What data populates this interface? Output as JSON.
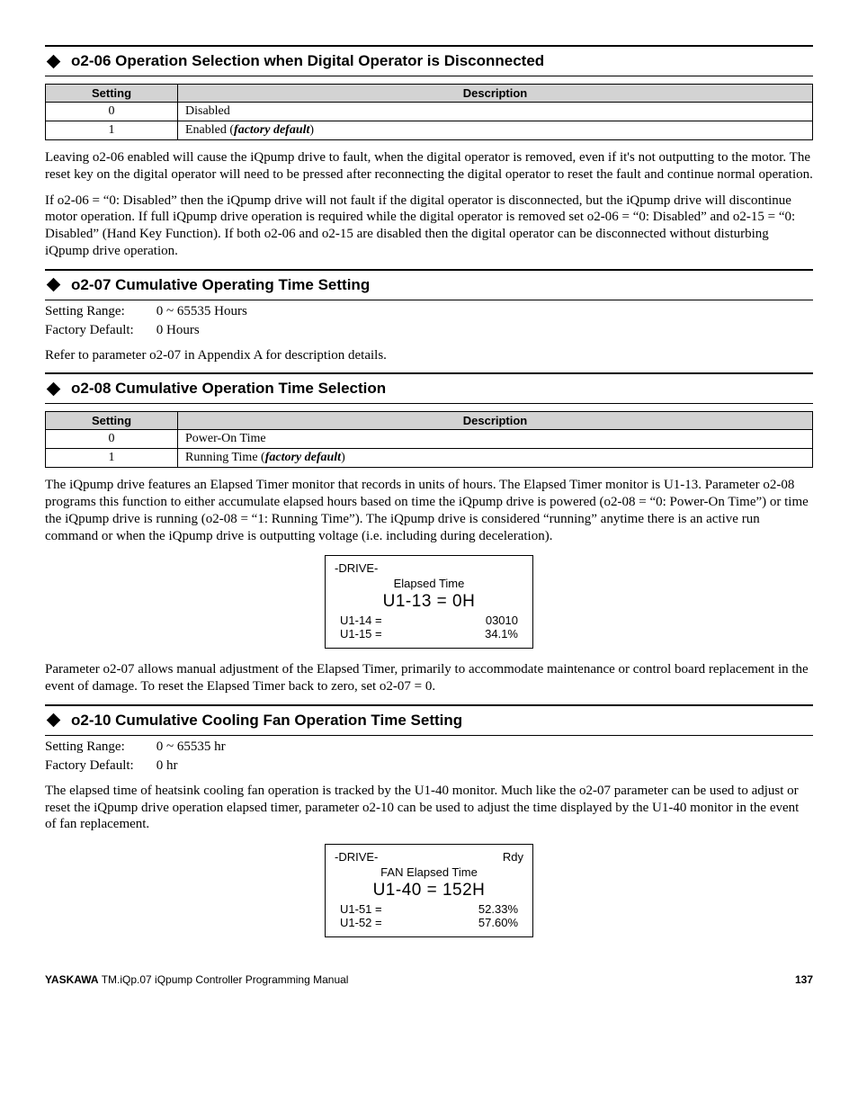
{
  "sections": {
    "s1": {
      "title": "o2-06 Operation Selection when Digital Operator is Disconnected",
      "table": {
        "headers": [
          "Setting",
          "Description"
        ],
        "rows": [
          [
            "0",
            "Disabled"
          ],
          [
            "1",
            "Enabled (",
            "factory default",
            ")"
          ]
        ]
      },
      "para1": "Leaving o2-06 enabled will cause the iQpump drive to fault, when the digital operator is removed, even if it's not outputting to the motor. The reset key on the digital operator will need to be pressed after reconnecting the digital operator to reset the fault and continue normal operation.",
      "para2": "If o2-06 = “0: Disabled” then the iQpump drive will not fault if the digital operator is disconnected, but the iQpump drive will discontinue motor operation. If full iQpump drive operation is required while the digital operator is removed set o2-06 = “0: Disabled” and o2-15 = “0: Disabled” (Hand Key Function). If both o2-06 and o2-15 are disabled then the digital operator can be disconnected without disturbing iQpump drive operation."
    },
    "s2": {
      "title": "o2-07 Cumulative Operating Time Setting",
      "setting_range_label": "Setting Range:",
      "setting_range_value": "0 ~ 65535 Hours",
      "factory_default_label": "Factory Default:",
      "factory_default_value": "0 Hours",
      "para1": "Refer to parameter o2-07 in Appendix A for description details."
    },
    "s3": {
      "title": "o2-08 Cumulative Operation Time Selection",
      "table": {
        "headers": [
          "Setting",
          "Description"
        ],
        "rows": [
          [
            "0",
            "Power-On Time"
          ],
          [
            "1",
            "Running Time (",
            "factory default",
            ")"
          ]
        ]
      },
      "para1": "The iQpump drive features an Elapsed Timer monitor that records in units of hours. The Elapsed Timer monitor is U1-13. Parameter o2-08 programs this function to either accumulate elapsed hours based on time the iQpump drive is powered (o2-08 = “0: Power-On Time”) or time the iQpump drive is running (o2-08 = “1: Running Time”). The iQpump drive is considered “running” anytime there is an active run command or when the iQpump drive is outputting voltage (i.e. including during deceleration).",
      "lcd": {
        "top_left": "-DRIVE-",
        "top_right": "",
        "line2": "Elapsed Time",
        "big": "U1-13 = 0H",
        "r1_left": "U1-14 =",
        "r1_right": "03010",
        "r2_left": "U1-15 =",
        "r2_right": "34.1%"
      },
      "para2": "Parameter o2-07 allows manual adjustment of the Elapsed Timer, primarily to accommodate maintenance or control board replacement in the event of damage. To reset the Elapsed Timer back to zero, set o2-07 = 0."
    },
    "s4": {
      "title": "o2-10 Cumulative Cooling Fan Operation Time Setting",
      "setting_range_label": "Setting Range:",
      "setting_range_value": "0 ~ 65535 hr",
      "factory_default_label": "Factory Default:",
      "factory_default_value": "0 hr",
      "para1": "The elapsed time of heatsink cooling fan operation is tracked by the U1-40 monitor. Much like the o2-07 parameter can be used to adjust or reset the iQpump drive operation elapsed timer, parameter o2-10 can be used to adjust the time displayed by the U1-40 monitor in the event of fan replacement.",
      "lcd": {
        "top_left": "-DRIVE-",
        "top_right": "Rdy",
        "line2": "FAN Elapsed Time",
        "big": "U1-40 = 152H",
        "r1_left": "U1-51 =",
        "r1_right": "52.33%",
        "r2_left": "U1-52 =",
        "r2_right": "57.60%"
      }
    }
  },
  "footer": {
    "brand": "YASKAWA",
    "doc": " TM.iQp.07 iQpump Controller Programming Manual",
    "page": "137"
  }
}
